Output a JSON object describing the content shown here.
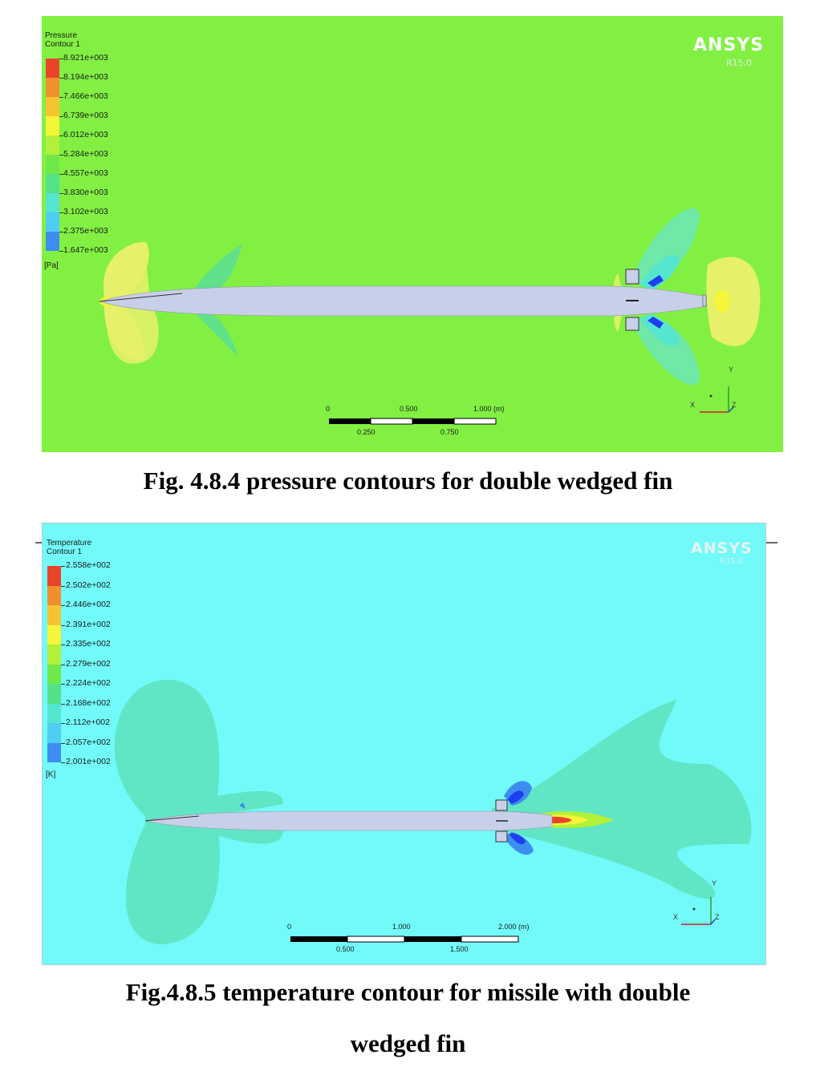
{
  "figures": [
    {
      "legend_title": "Pressure\nContour 1",
      "legend_values": [
        "8.921e+003",
        "8.194e+003",
        "7.466e+003",
        "6.739e+003",
        "6.012e+003",
        "5.284e+003",
        "4.557e+003",
        "3.830e+003",
        "3.102e+003",
        "2.375e+003",
        "1.647e+003"
      ],
      "legend_unit": "[Pa]",
      "brand": "ANSYS",
      "version": "R15.0",
      "scale_top": [
        "0",
        "0.500",
        "1.000  (m)"
      ],
      "scale_bottom": [
        "0.250",
        "0.750"
      ],
      "caption": "Fig. 4.8.4 pressure contours for double wedged fin"
    },
    {
      "legend_title": "Temperature\nContour 1",
      "legend_values": [
        "2.558e+002",
        "2.502e+002",
        "2.446e+002",
        "2.391e+002",
        "2.335e+002",
        "2.279e+002",
        "2.224e+002",
        "2.168e+002",
        "2.112e+002",
        "2.057e+002",
        "2.001e+002"
      ],
      "legend_unit": "[K]",
      "brand": "ANSYS",
      "version": "R15.0",
      "scale_top": [
        "0",
        "1.000",
        "2.000  (m)"
      ],
      "scale_bottom": [
        "0.500",
        "1.500"
      ],
      "caption_line1": "Fig.4.8.5 temperature contour for missile with double",
      "caption_line2": "wedged fin"
    }
  ],
  "axis_triad": {
    "x": "X",
    "y": "Y",
    "z": "Z"
  },
  "colormap": [
    "#e8442a",
    "#f08f2e",
    "#f5c531",
    "#f5f53a",
    "#b3f03a",
    "#6fe84a",
    "#55e08a",
    "#55e6cf",
    "#4fcdf2",
    "#3d8ef0",
    "#1f3ef0"
  ],
  "fill_colors": {
    "pressure_background": "#82f043",
    "temperature_background": "#72fafa",
    "missile_body": "#c8cfe8"
  }
}
